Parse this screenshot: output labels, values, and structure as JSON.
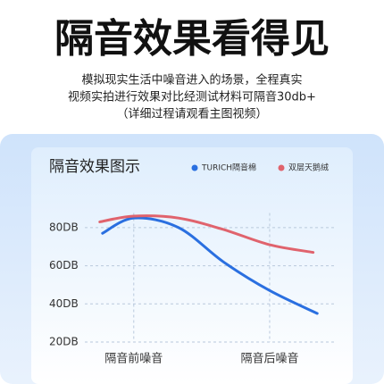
{
  "header": {
    "title": "隔音效果看得见",
    "subtitle": [
      "模拟现实生活中噪音进入的场景，全程真实",
      "视频实拍进行效果对比经测试材料可隔音30db+",
      "（详细过程请观看主图视频）"
    ]
  },
  "chart_data": {
    "type": "line",
    "title": "隔音效果图示",
    "series": [
      {
        "name": "TURICH隔音棉",
        "color": "#2a6fe0",
        "x": [
          -0.23,
          0,
          0.33,
          0.66,
          1,
          1.35
        ],
        "values": [
          77,
          85,
          80,
          62,
          47,
          35
        ]
      },
      {
        "name": "双层天鹅绒",
        "color": "#e0636d",
        "x": [
          -0.25,
          0,
          0.33,
          0.66,
          1,
          1.32
        ],
        "values": [
          83,
          86,
          85,
          79,
          71,
          67
        ]
      }
    ],
    "xlim": [
      -0.36,
      1.48
    ],
    "xticks": [
      {
        "value": 0,
        "label": "隔音前噪音"
      },
      {
        "value": 1,
        "label": "隔音后噪音"
      }
    ],
    "ylim": [
      20,
      90
    ],
    "yticks": [
      {
        "value": 20,
        "label": "20DB"
      },
      {
        "value": 40,
        "label": "40DB"
      },
      {
        "value": 60,
        "label": "60DB"
      },
      {
        "value": 80,
        "label": "80DB"
      }
    ],
    "grid": true
  }
}
